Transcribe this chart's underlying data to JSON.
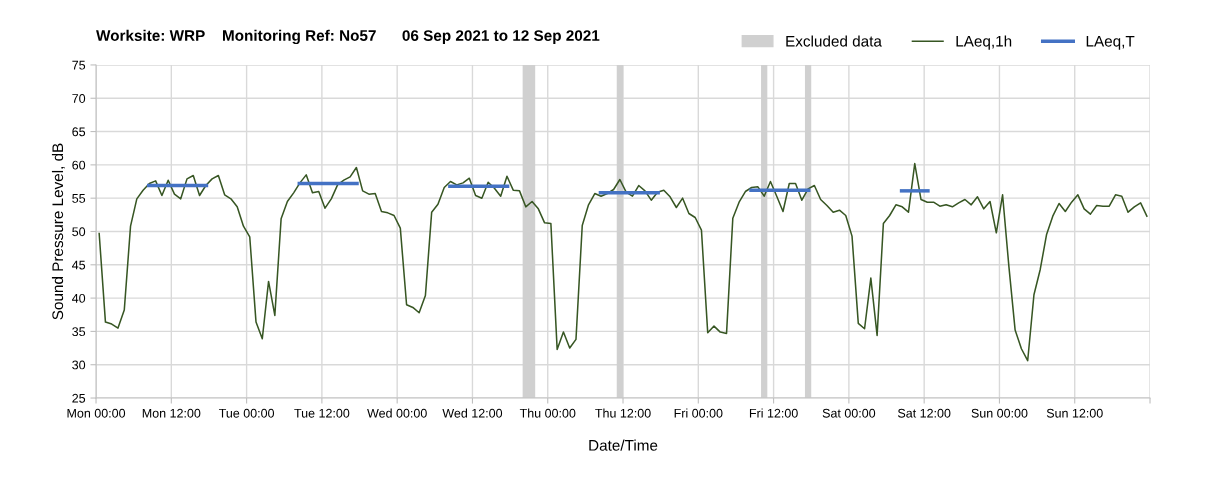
{
  "chart_data": {
    "type": "line",
    "title": "Worksite: WRP    Monitoring Ref: No57      06 Sep 2021 to 12 Sep 2021",
    "xlabel": "Date/Time",
    "ylabel": "Sound Pressure Level, dB",
    "xlim": [
      "2021-09-06T00:00",
      "2021-09-13T00:00"
    ],
    "ylim": [
      25,
      75
    ],
    "xticks": [
      {
        "value": "2021-09-06T00:00",
        "label": "Mon 00:00"
      },
      {
        "value": "2021-09-06T12:00",
        "label": "Mon 12:00"
      },
      {
        "value": "2021-09-07T00:00",
        "label": "Tue 00:00"
      },
      {
        "value": "2021-09-07T12:00",
        "label": "Tue 12:00"
      },
      {
        "value": "2021-09-08T00:00",
        "label": "Wed 00:00"
      },
      {
        "value": "2021-09-08T12:00",
        "label": "Wed 12:00"
      },
      {
        "value": "2021-09-09T00:00",
        "label": "Thu 00:00"
      },
      {
        "value": "2021-09-09T12:00",
        "label": "Thu 12:00"
      },
      {
        "value": "2021-09-10T00:00",
        "label": "Fri 00:00"
      },
      {
        "value": "2021-09-10T12:00",
        "label": "Fri 12:00"
      },
      {
        "value": "2021-09-11T00:00",
        "label": "Sat 00:00"
      },
      {
        "value": "2021-09-11T12:00",
        "label": "Sat 12:00"
      },
      {
        "value": "2021-09-12T00:00",
        "label": "Sun 00:00"
      },
      {
        "value": "2021-09-12T12:00",
        "label": "Sun 12:00"
      },
      {
        "value": "2021-09-13T00:00",
        "label": null
      }
    ],
    "yticks": [
      25,
      30,
      35,
      40,
      45,
      50,
      55,
      60,
      65,
      70,
      75
    ],
    "grid": true,
    "legend": "top right",
    "marker": "none",
    "line_style": "solid",
    "bands": [
      {
        "axis": "x",
        "from": "2021-09-08T20:00",
        "to": "2021-09-08T22:00",
        "label": "Excluded data",
        "color": "#d0d0d0"
      },
      {
        "axis": "x",
        "from": "2021-09-09T11:00",
        "to": "2021-09-09T12:00",
        "color": "#d0d0d0"
      },
      {
        "axis": "x",
        "from": "2021-09-10T10:00",
        "to": "2021-09-10T11:00",
        "color": "#d0d0d0"
      },
      {
        "axis": "x",
        "from": "2021-09-10T17:00",
        "to": "2021-09-10T18:00",
        "color": "#d0d0d0"
      }
    ],
    "series": [
      {
        "name": "LAeq,1h",
        "color": "#375623",
        "x": [
          "2021-09-06T00:30",
          "2021-09-06T01:30",
          "2021-09-06T02:30",
          "2021-09-06T03:30",
          "2021-09-06T04:30",
          "2021-09-06T05:30",
          "2021-09-06T06:30",
          "2021-09-06T07:30",
          "2021-09-06T08:30",
          "2021-09-06T09:30",
          "2021-09-06T10:30",
          "2021-09-06T11:30",
          "2021-09-06T12:30",
          "2021-09-06T13:30",
          "2021-09-06T14:30",
          "2021-09-06T15:30",
          "2021-09-06T16:30",
          "2021-09-06T17:30",
          "2021-09-06T18:30",
          "2021-09-06T19:30",
          "2021-09-06T20:30",
          "2021-09-06T21:30",
          "2021-09-06T22:30",
          "2021-09-06T23:30",
          "2021-09-07T00:30",
          "2021-09-07T01:30",
          "2021-09-07T02:30",
          "2021-09-07T03:30",
          "2021-09-07T04:30",
          "2021-09-07T05:30",
          "2021-09-07T06:30",
          "2021-09-07T07:30",
          "2021-09-07T08:30",
          "2021-09-07T09:30",
          "2021-09-07T10:30",
          "2021-09-07T11:30",
          "2021-09-07T12:30",
          "2021-09-07T13:30",
          "2021-09-07T14:30",
          "2021-09-07T15:30",
          "2021-09-07T16:30",
          "2021-09-07T17:30",
          "2021-09-07T18:30",
          "2021-09-07T19:30",
          "2021-09-07T20:30",
          "2021-09-07T21:30",
          "2021-09-07T22:30",
          "2021-09-07T23:30",
          "2021-09-08T00:30",
          "2021-09-08T01:30",
          "2021-09-08T02:30",
          "2021-09-08T03:30",
          "2021-09-08T04:30",
          "2021-09-08T05:30",
          "2021-09-08T06:30",
          "2021-09-08T07:30",
          "2021-09-08T08:30",
          "2021-09-08T09:30",
          "2021-09-08T10:30",
          "2021-09-08T11:30",
          "2021-09-08T12:30",
          "2021-09-08T13:30",
          "2021-09-08T14:30",
          "2021-09-08T15:30",
          "2021-09-08T16:30",
          "2021-09-08T17:30",
          "2021-09-08T18:30",
          "2021-09-08T19:30",
          "2021-09-08T20:30",
          "2021-09-08T21:30",
          "2021-09-08T22:30",
          "2021-09-08T23:30",
          "2021-09-09T00:30",
          "2021-09-09T01:30",
          "2021-09-09T02:30",
          "2021-09-09T03:30",
          "2021-09-09T04:30",
          "2021-09-09T05:30",
          "2021-09-09T06:30",
          "2021-09-09T07:30",
          "2021-09-09T08:30",
          "2021-09-09T09:30",
          "2021-09-09T10:30",
          "2021-09-09T11:30",
          "2021-09-09T12:30",
          "2021-09-09T13:30",
          "2021-09-09T14:30",
          "2021-09-09T15:30",
          "2021-09-09T16:30",
          "2021-09-09T17:30",
          "2021-09-09T18:30",
          "2021-09-09T19:30",
          "2021-09-09T20:30",
          "2021-09-09T21:30",
          "2021-09-09T22:30",
          "2021-09-09T23:30",
          "2021-09-10T00:30",
          "2021-09-10T01:30",
          "2021-09-10T02:30",
          "2021-09-10T03:30",
          "2021-09-10T04:30",
          "2021-09-10T05:30",
          "2021-09-10T06:30",
          "2021-09-10T07:30",
          "2021-09-10T08:30",
          "2021-09-10T09:30",
          "2021-09-10T10:30",
          "2021-09-10T11:30",
          "2021-09-10T12:30",
          "2021-09-10T13:30",
          "2021-09-10T14:30",
          "2021-09-10T15:30",
          "2021-09-10T16:30",
          "2021-09-10T17:30",
          "2021-09-10T18:30",
          "2021-09-10T19:30",
          "2021-09-10T20:30",
          "2021-09-10T21:30",
          "2021-09-10T22:30",
          "2021-09-10T23:30",
          "2021-09-11T00:30",
          "2021-09-11T01:30",
          "2021-09-11T02:30",
          "2021-09-11T03:30",
          "2021-09-11T04:30",
          "2021-09-11T05:30",
          "2021-09-11T06:30",
          "2021-09-11T07:30",
          "2021-09-11T08:30",
          "2021-09-11T09:30",
          "2021-09-11T10:30",
          "2021-09-11T11:30",
          "2021-09-11T12:30",
          "2021-09-11T13:30",
          "2021-09-11T14:30",
          "2021-09-11T15:30",
          "2021-09-11T16:30",
          "2021-09-11T17:30",
          "2021-09-11T18:30",
          "2021-09-11T19:30",
          "2021-09-11T20:30",
          "2021-09-11T21:30",
          "2021-09-11T22:30",
          "2021-09-11T23:30",
          "2021-09-12T00:30",
          "2021-09-12T01:30",
          "2021-09-12T02:30",
          "2021-09-12T03:30",
          "2021-09-12T04:30",
          "2021-09-12T05:30",
          "2021-09-12T06:30",
          "2021-09-12T07:30",
          "2021-09-12T08:30",
          "2021-09-12T09:30",
          "2021-09-12T10:30",
          "2021-09-12T11:30",
          "2021-09-12T12:30",
          "2021-09-12T13:30",
          "2021-09-12T14:30",
          "2021-09-12T15:30",
          "2021-09-12T16:30",
          "2021-09-12T17:30",
          "2021-09-12T18:30",
          "2021-09-12T19:30",
          "2021-09-12T20:30",
          "2021-09-12T21:30",
          "2021-09-12T22:30",
          "2021-09-12T23:30"
        ],
        "values": [
          49.7,
          36.4,
          36.1,
          35.5,
          38.2,
          50.8,
          54.9,
          56.2,
          57.2,
          57.6,
          55.4,
          57.7,
          55.6,
          54.9,
          57.9,
          58.4,
          55.4,
          56.9,
          57.9,
          58.4,
          55.5,
          54.9,
          53.7,
          50.8,
          49.2,
          36.4,
          33.9,
          42.5,
          37.4,
          51.9,
          54.5,
          55.8,
          57.3,
          58.5,
          55.8,
          56.0,
          53.5,
          54.9,
          57.0,
          57.7,
          58.2,
          59.6,
          56.1,
          55.6,
          55.7,
          53.0,
          52.8,
          52.4,
          50.5,
          39.0,
          38.6,
          37.8,
          40.4,
          52.9,
          54.1,
          56.6,
          57.5,
          57.0,
          57.3,
          58.0,
          55.4,
          55.0,
          57.4,
          56.5,
          55.3,
          58.3,
          56.2,
          56.1,
          53.7,
          54.5,
          53.4,
          51.3,
          51.2,
          32.3,
          34.9,
          32.5,
          33.8,
          50.9,
          54.0,
          55.7,
          55.3,
          55.7,
          56.3,
          57.8,
          55.9,
          55.3,
          56.9,
          56.1,
          54.7,
          55.9,
          56.2,
          55.2,
          53.6,
          55.0,
          52.7,
          52.1,
          50.2,
          34.8,
          35.8,
          34.9,
          34.7,
          52.0,
          54.4,
          56.0,
          56.6,
          56.7,
          55.3,
          57.5,
          55.3,
          53.0,
          57.2,
          57.2,
          54.7,
          56.4,
          56.9,
          54.8,
          53.9,
          52.9,
          53.2,
          52.4,
          49.3,
          36.2,
          35.4,
          43.0,
          34.4,
          51.2,
          52.4,
          54.0,
          53.7,
          52.9,
          60.2,
          54.8,
          54.4,
          54.4,
          53.8,
          54.0,
          53.7,
          54.3,
          54.8,
          54.0,
          55.2,
          53.4,
          54.5,
          49.8,
          55.5,
          44.8,
          35.2,
          32.4,
          30.6,
          40.5,
          44.3,
          49.5,
          52.3,
          54.2,
          53.0,
          54.4,
          55.5,
          53.4,
          52.6,
          53.9,
          53.8,
          53.8,
          55.5,
          55.3,
          52.9,
          53.7,
          54.3,
          52.3
        ]
      },
      {
        "name": "LAeq,T",
        "color": "#4472c4",
        "x": [
          "2021-09-06T08:24",
          "2021-09-06T17:36"
        ],
        "values": [
          56.9,
          56.9
        ]
      },
      {
        "color": "#4472c4",
        "x": [
          "2021-09-07T08:24",
          "2021-09-07T17:36"
        ],
        "values": [
          57.2,
          57.2
        ]
      },
      {
        "color": "#4472c4",
        "x": [
          "2021-09-08T08:24",
          "2021-09-08T17:36"
        ],
        "values": [
          56.8,
          56.8
        ]
      },
      {
        "color": "#4472c4",
        "x": [
          "2021-09-09T08:24",
          "2021-09-09T17:36"
        ],
        "values": [
          55.8,
          55.8
        ]
      },
      {
        "color": "#4472c4",
        "x": [
          "2021-09-10T08:24",
          "2021-09-10T17:36"
        ],
        "values": [
          56.2,
          56.2
        ]
      },
      {
        "color": "#4472c4",
        "x": [
          "2021-09-11T08:24",
          "2021-09-11T12:36"
        ],
        "values": [
          56.1,
          56.1
        ]
      }
    ]
  }
}
